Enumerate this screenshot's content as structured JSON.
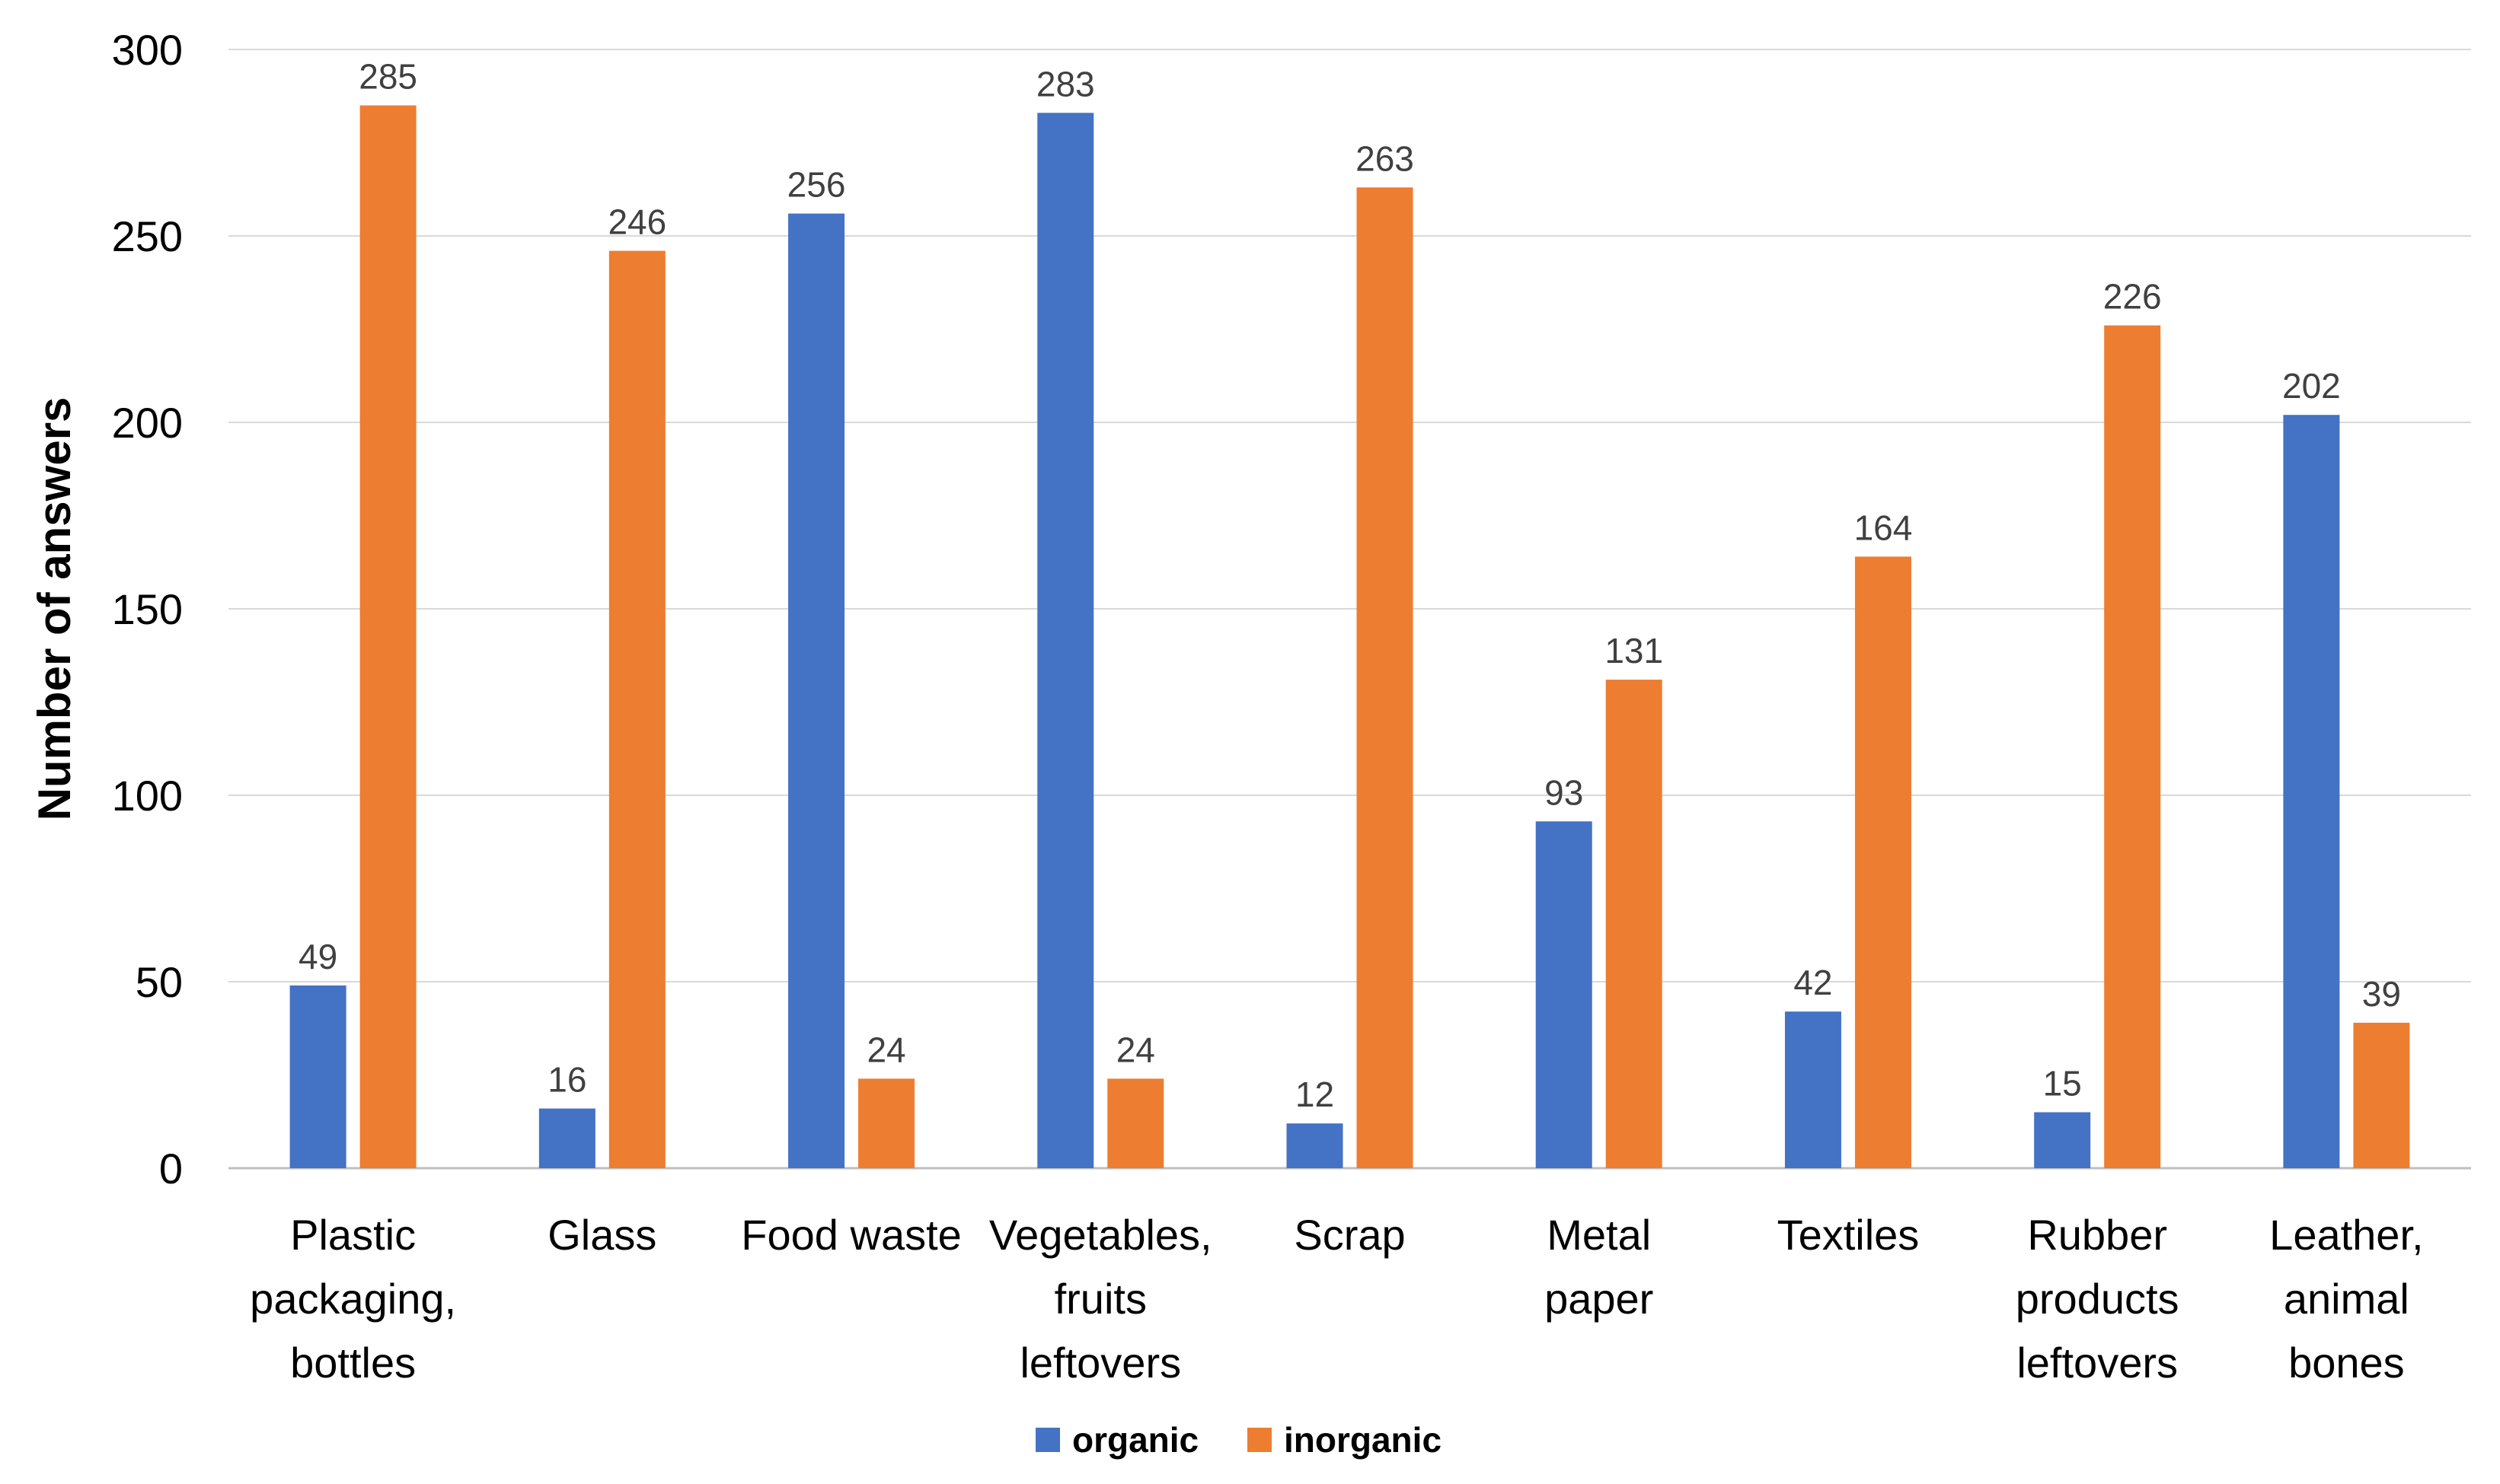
{
  "chart_data": {
    "type": "bar",
    "title": "",
    "xlabel": "",
    "ylabel": "Number of answers",
    "ylim": [
      0,
      300
    ],
    "yticks": [
      0,
      50,
      100,
      150,
      200,
      250,
      300
    ],
    "grid": true,
    "legend_position": "bottom",
    "categories": [
      [
        "Plastic",
        "packaging,",
        "bottles"
      ],
      [
        "Glass"
      ],
      [
        "Food waste"
      ],
      [
        "Vegetables,",
        "fruits",
        "leftovers"
      ],
      [
        "Scrap"
      ],
      [
        "Metal",
        "paper"
      ],
      [
        "Textiles"
      ],
      [
        "Rubber",
        "products",
        "leftovers"
      ],
      [
        "Leather,",
        "animal",
        "bones"
      ]
    ],
    "series": [
      {
        "name": "organic",
        "color": "#4472C4",
        "values": [
          49,
          16,
          256,
          283,
          12,
          93,
          42,
          15,
          202
        ]
      },
      {
        "name": "inorganic",
        "color": "#ED7D31",
        "values": [
          285,
          246,
          24,
          24,
          263,
          131,
          164,
          226,
          39
        ]
      }
    ]
  }
}
